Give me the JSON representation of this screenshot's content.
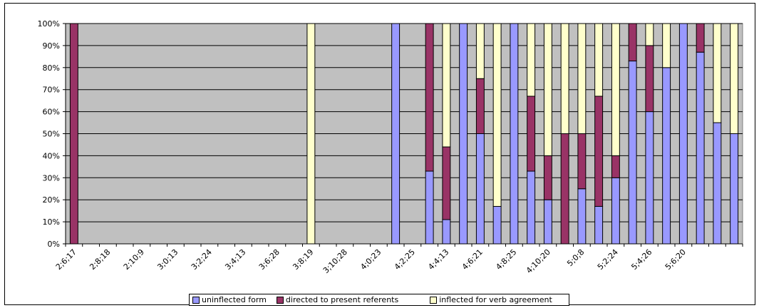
{
  "chart_data": {
    "type": "bar",
    "stacked": true,
    "percent": true,
    "colors": {
      "uninflected form": "#9999ff",
      "directed to present referents": "#993366",
      "inflected for verb agreement": "#ffffcc",
      "plot_background": "#c0c0c0"
    },
    "ylim": [
      0,
      100
    ],
    "yticks": [
      "0%",
      "10%",
      "20%",
      "30%",
      "40%",
      "50%",
      "60%",
      "70%",
      "80%",
      "90%",
      "100%"
    ],
    "xtick_labels": [
      "2;6;17",
      "2;8;18",
      "2;10;9",
      "3;0;13",
      "3;2;24",
      "3;4;13",
      "3;6;28",
      "3;8;19",
      "3;10;28",
      "4;0;23",
      "4;2;25",
      "4;4;13",
      "4;6;21",
      "4;8;25",
      "4;10;20",
      "5;0;8",
      "5;2;24",
      "5;4;26",
      "5;6;20"
    ],
    "n_categories": 40,
    "series": [
      {
        "name": "uninflected form",
        "values": [
          0,
          0,
          0,
          0,
          0,
          0,
          0,
          0,
          0,
          0,
          0,
          0,
          0,
          0,
          0,
          0,
          0,
          0,
          0,
          100,
          0,
          33,
          11,
          100,
          50,
          17,
          100,
          33,
          20,
          0,
          25,
          17,
          30,
          83,
          60,
          80,
          100,
          87,
          55,
          50
        ]
      },
      {
        "name": "directed to present referents",
        "values": [
          100,
          0,
          0,
          0,
          0,
          0,
          0,
          0,
          0,
          0,
          0,
          0,
          0,
          0,
          0,
          0,
          0,
          0,
          0,
          0,
          0,
          67,
          33,
          0,
          25,
          0,
          0,
          34,
          20,
          50,
          25,
          50,
          10,
          17,
          30,
          0,
          0,
          13,
          0,
          0
        ]
      },
      {
        "name": "inflected for verb agreement",
        "values": [
          0,
          0,
          0,
          0,
          0,
          0,
          0,
          0,
          0,
          0,
          0,
          0,
          0,
          0,
          100,
          0,
          0,
          0,
          0,
          0,
          0,
          0,
          56,
          0,
          25,
          83,
          0,
          33,
          60,
          50,
          50,
          33,
          60,
          0,
          10,
          20,
          0,
          0,
          45,
          50
        ]
      }
    ],
    "grid": true,
    "legend_position": "bottom"
  }
}
